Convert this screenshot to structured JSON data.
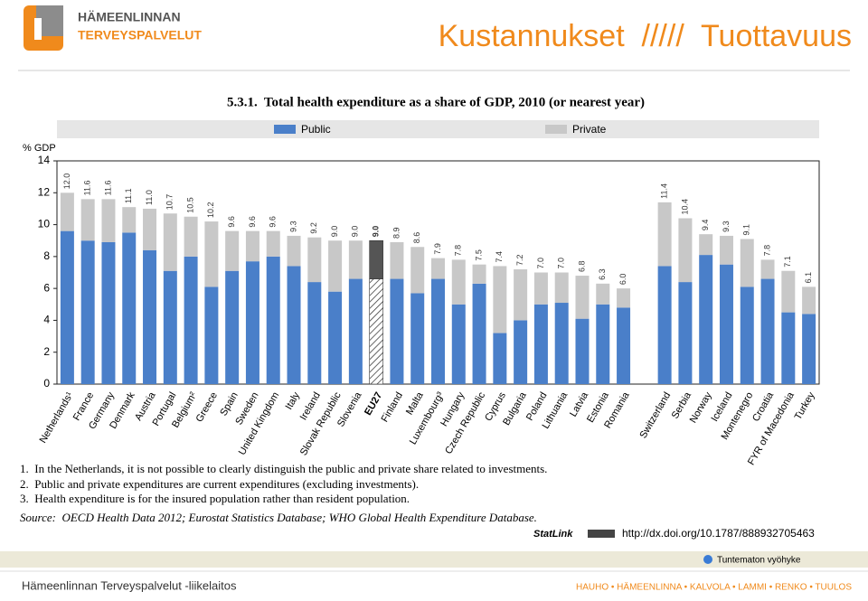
{
  "header": {
    "logo_line1": "HÄMEENLINNAN",
    "logo_line2": "TERVEYSPALVELUT",
    "title": "Kustannukset  /////  Tuottavuus"
  },
  "chart_data": {
    "type": "stacked_bar",
    "title": "5.3.1.  Total health expenditure as a share of GDP, 2010 (or nearest year)",
    "y_label": "% GDP",
    "categories": [
      "Netherlands¹",
      "France",
      "Germany",
      "Denmark",
      "Austria",
      "Portugal",
      "Belgium²",
      "Greece",
      "Spain",
      "Sweden",
      "United Kingdom",
      "Italy",
      "Ireland",
      "Slovak Republic",
      "Slovenia",
      "EU27",
      "Finland",
      "Malta",
      "Luxembourg³",
      "Hungary",
      "Czech Republic",
      "Cyprus",
      "Bulgaria",
      "Poland",
      "Lithuania",
      "Latvia",
      "Estonia",
      "Romania",
      null,
      "Switzerland",
      "Serbia",
      "Norway",
      "Iceland",
      "Montenegro",
      "Croatia",
      "FYR of Macedonia",
      "Turkey"
    ],
    "series": [
      {
        "name": "Public",
        "color": "#4a7fc9",
        "values": [
          9.6,
          9.0,
          8.9,
          9.5,
          8.4,
          7.1,
          8.0,
          6.1,
          7.1,
          7.7,
          8.0,
          7.4,
          6.4,
          5.8,
          6.6,
          6.6,
          6.6,
          5.7,
          6.6,
          5.0,
          6.3,
          3.2,
          4.0,
          5.0,
          5.1,
          4.1,
          5.0,
          4.8,
          null,
          7.4,
          6.4,
          8.1,
          7.5,
          6.1,
          6.6,
          4.5,
          4.4
        ]
      },
      {
        "name": "Private",
        "color": "#c8c8c8",
        "values": [
          2.4,
          2.6,
          2.7,
          1.6,
          2.6,
          3.6,
          2.5,
          4.1,
          2.5,
          1.9,
          1.6,
          1.9,
          2.8,
          3.2,
          2.4,
          2.4,
          2.3,
          2.9,
          1.3,
          2.8,
          1.2,
          4.2,
          3.2,
          2.0,
          1.9,
          2.7,
          1.3,
          1.2,
          null,
          4.0,
          4.0,
          1.3,
          1.8,
          3.0,
          1.2,
          2.6,
          1.7
        ]
      }
    ],
    "totals": {
      "values": [
        12.0,
        11.6,
        11.6,
        11.1,
        11.0,
        10.7,
        10.5,
        10.2,
        9.6,
        9.6,
        9.6,
        9.3,
        9.2,
        9.0,
        9.0,
        9.0,
        8.9,
        8.6,
        7.9,
        7.8,
        7.5,
        7.4,
        7.2,
        7.0,
        7.0,
        6.8,
        6.3,
        6.0,
        null,
        11.4,
        10.4,
        9.4,
        9.3,
        9.1,
        7.8,
        7.1,
        6.1
      ],
      "value_labels": [
        "12.0",
        "11.6",
        "11.6",
        "11.1",
        "11.0",
        "10.7",
        "10.5",
        "10.2",
        "9.6",
        "9.6",
        "9.6",
        "9.3",
        "9.2",
        "9.0",
        "9.0",
        "9.0",
        "8.9",
        "8.6",
        "7.9",
        "7.8",
        "7.5",
        "7.4",
        "7.2",
        "7.0",
        "7.0",
        "6.8",
        "6.3",
        "6.0",
        null,
        "11.4",
        "10.4",
        "9.4",
        "9.3",
        "9.1",
        "7.8",
        "7.1",
        "6.1"
      ]
    },
    "highlight": {
      "category": "EU27",
      "colors": [
        "url(#hatch)",
        "#555555"
      ]
    },
    "ylim": [
      0,
      14
    ],
    "yticks": [
      0,
      2,
      4,
      6,
      8,
      10,
      12,
      14
    ],
    "legend": "top"
  },
  "notes": [
    "1.  In the Netherlands, it is not possible to clearly distinguish the public and private share related to investments.",
    "2.  Public and private expenditures are current expenditures (excluding investments).",
    "3.  Health expenditure is for the insured population rather than resident population."
  ],
  "source": "Source:  OECD Health Data 2012; Eurostat Statistics Database; WHO Global Health Expenditure Database.",
  "statlink": {
    "label": "StatLink",
    "url": "http://dx.doi.org/10.1787/888932705463"
  },
  "status_bar": "Tuntematon vyöhyke",
  "footer": {
    "left": "Hämeenlinnan Terveyspalvelut -liikelaitos",
    "right": "HAUHO • HÄMEENLINNA • KALVOLA • LAMMI • RENKO • TUULOS"
  }
}
